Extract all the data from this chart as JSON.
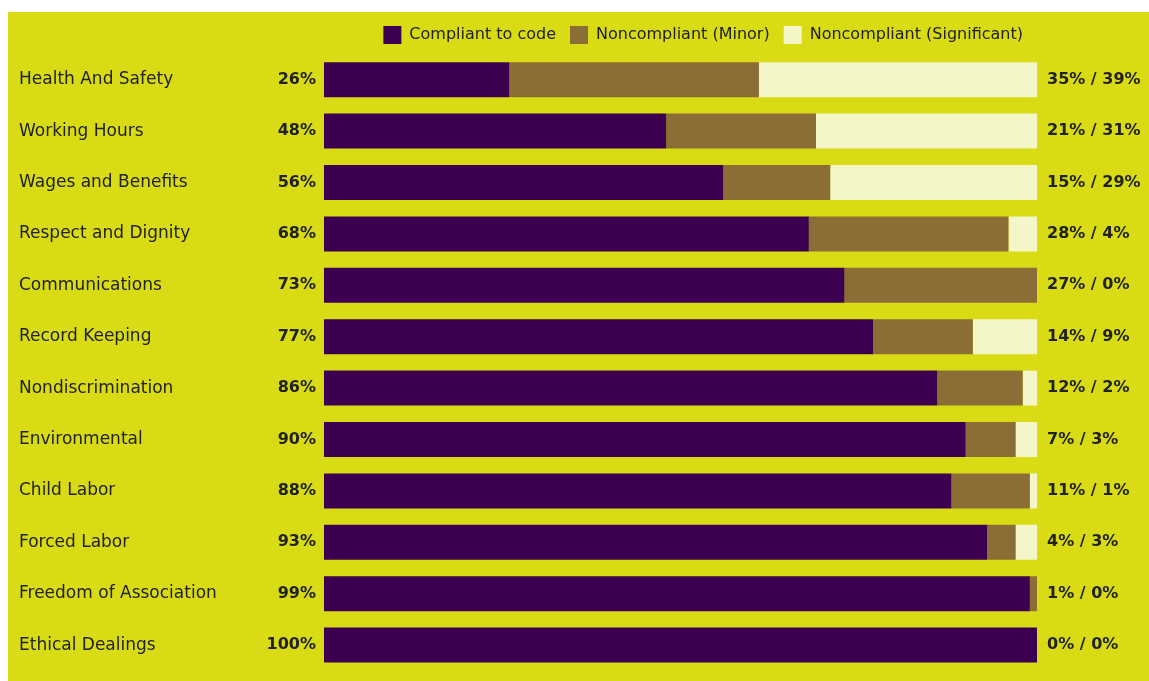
{
  "chart_data": {
    "type": "bar",
    "orientation": "horizontal",
    "stacked": true,
    "xlim": [
      0,
      100
    ],
    "tick_labels": "y",
    "grid": false,
    "legend": "top right",
    "categories": [
      "Health And Safety",
      "Working Hours",
      "Wages and Benefits",
      "Respect and Dignity",
      "Communications",
      "Record Keeping",
      "Nondiscrimination",
      "Environmental",
      "Child Labor",
      "Forced Labor",
      "Freedom of Association",
      "Ethical Dealings"
    ],
    "series": [
      {
        "name": "Compliant to code",
        "color": "#3d0050",
        "values": [
          26,
          48,
          56,
          68,
          73,
          77,
          86,
          90,
          88,
          93,
          99,
          100
        ],
        "value_labels": [
          "26%",
          "48%",
          "56%",
          "68%",
          "73%",
          "77%",
          "86%",
          "90%",
          "88%",
          "93%",
          "99%",
          "100%"
        ]
      },
      {
        "name": "Noncompliant (Minor)",
        "color": "#8b6e35",
        "values": [
          35,
          21,
          15,
          28,
          27,
          14,
          12,
          7,
          11,
          4,
          1,
          0
        ]
      },
      {
        "name": "Noncompliant (Significant)",
        "color": "#f4f6c8",
        "values": [
          39,
          31,
          29,
          4,
          0,
          9,
          2,
          3,
          1,
          3,
          0,
          0
        ],
        "value_labels": [
          "35% / 39%",
          "21% / 31%",
          "15% / 29%",
          "28% / 4%",
          "27% / 0%",
          "14% / 9%",
          "12% / 2%",
          "7% / 3%",
          "11% / 1%",
          "4% / 3%",
          "1% / 0%",
          "0% / 0%"
        ]
      }
    ]
  }
}
